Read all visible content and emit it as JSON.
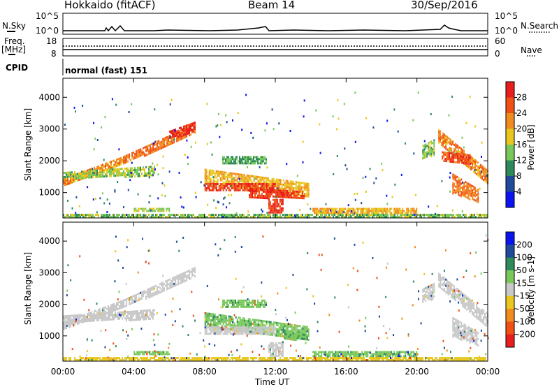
{
  "header": {
    "station": "Hokkaido (fitACF)",
    "beam": "Beam 14",
    "date": "30/Sep/2016"
  },
  "noise_panel": {
    "left_label": "N.Sky",
    "right_label": "N.Search",
    "left_ticks": [
      "10^5",
      "10^0"
    ],
    "right_ticks": [
      "10^5",
      "10^0"
    ]
  },
  "freq_panel": {
    "left_label_1": "Freq.",
    "left_label_2": "[MHz]",
    "right_label": "Nave",
    "left_ticks": [
      "18",
      "8"
    ],
    "right_ticks": [
      "60",
      "0"
    ]
  },
  "cpid": {
    "label": "CPID",
    "value": "normal (fast) 151"
  },
  "x_axis": {
    "label": "Time UT",
    "ticks": [
      "00:00",
      "04:00",
      "08:00",
      "12:00",
      "16:00",
      "20:00",
      "00:00"
    ]
  },
  "colors": {
    "power": [
      "#0a14f0",
      "#1e4a9a",
      "#2e8a5c",
      "#78c85a",
      "#e8c81e",
      "#f08c1e",
      "#f05014",
      "#e81e1e"
    ],
    "velocity": [
      "#0a14f0",
      "#1e4a9a",
      "#2e8a5c",
      "#78c85a",
      "#c8c8c8",
      "#e8c81e",
      "#f08c1e",
      "#f05014",
      "#e81e1e"
    ]
  },
  "chart_data": [
    {
      "type": "heatmap",
      "title": "",
      "xlabel": "Time UT",
      "ylabel": "Slant Range [km]",
      "xlim": [
        0,
        24
      ],
      "ylim": [
        200,
        4600
      ],
      "yticks": [
        1000,
        2000,
        3000,
        4000
      ],
      "colorbar": {
        "label": "Power [dB]",
        "ticks": [
          4,
          8,
          12,
          16,
          20,
          24,
          28
        ],
        "range": [
          0,
          32
        ]
      },
      "regions": [
        {
          "t0": 0.0,
          "t1": 3.4,
          "r0": 1250,
          "r1": 1450,
          "r0b": 1900,
          "r1b": 2150,
          "value": 22
        },
        {
          "t0": 0.0,
          "t1": 5.2,
          "r0": 1450,
          "r1": 1650,
          "r0b": 1550,
          "r1b": 1850,
          "value": 15
        },
        {
          "t0": 3.4,
          "t1": 7.5,
          "r0": 1900,
          "r1": 2150,
          "r0b": 2900,
          "r1b": 3200,
          "value": 24
        },
        {
          "t0": 6.0,
          "t1": 7.5,
          "r0": 2700,
          "r1": 2950,
          "r0b": 2950,
          "r1b": 3250,
          "value": 29
        },
        {
          "t0": 8.0,
          "t1": 13.9,
          "r0": 1300,
          "r1": 1750,
          "r0b": 850,
          "r1b": 1300,
          "value": 20
        },
        {
          "t0": 8.0,
          "t1": 12.0,
          "r0": 1050,
          "r1": 1300,
          "r0b": 1050,
          "r1b": 1300,
          "value": 27
        },
        {
          "t0": 10.5,
          "t1": 13.6,
          "r0": 850,
          "r1": 1150,
          "r0b": 850,
          "r1b": 1050,
          "value": 28
        },
        {
          "t0": 9.0,
          "t1": 11.5,
          "r0": 1950,
          "r1": 2150,
          "r0b": 1950,
          "r1b": 2150,
          "value": 12
        },
        {
          "t0": 11.6,
          "t1": 12.4,
          "r0": 350,
          "r1": 800,
          "r0b": 350,
          "r1b": 800,
          "value": 28
        },
        {
          "t0": 4.0,
          "t1": 6.0,
          "r0": 400,
          "r1": 520,
          "r0b": 400,
          "r1b": 520,
          "value": 16
        },
        {
          "t0": 14.1,
          "t1": 20.0,
          "r0": 380,
          "r1": 520,
          "r0b": 380,
          "r1b": 520,
          "value": 20
        },
        {
          "t0": 0.0,
          "t1": 24.0,
          "r0": 220,
          "r1": 330,
          "r0b": 220,
          "r1b": 330,
          "value": 14
        },
        {
          "t0": 20.3,
          "t1": 21.0,
          "r0": 2100,
          "r1": 2500,
          "r0b": 2200,
          "r1b": 2700,
          "value": 14
        },
        {
          "t0": 21.2,
          "t1": 24.0,
          "r0": 2600,
          "r1": 3000,
          "r0b": 1300,
          "r1b": 1700,
          "value": 23
        },
        {
          "t0": 21.4,
          "t1": 23.0,
          "r0": 2000,
          "r1": 2300,
          "r0b": 1900,
          "r1b": 2200,
          "value": 26
        },
        {
          "t0": 22.0,
          "t1": 23.5,
          "r0": 1000,
          "r1": 1600,
          "r0b": 700,
          "r1b": 1100,
          "value": 24
        }
      ]
    },
    {
      "type": "heatmap",
      "title": "",
      "xlabel": "Time UT",
      "ylabel": "Slant Range [km]",
      "xlim": [
        0,
        24
      ],
      "ylim": [
        200,
        4600
      ],
      "yticks": [
        1000,
        2000,
        3000,
        4000
      ],
      "colorbar": {
        "label": "Velocity [m s-1]",
        "ticks": [
          200,
          100,
          50,
          15,
          -15,
          -50,
          -100,
          -200
        ],
        "range": [
          -250,
          250
        ]
      },
      "regions": [
        {
          "t0": 0.0,
          "t1": 3.4,
          "r0": 1250,
          "r1": 1450,
          "r0b": 1900,
          "r1b": 2150,
          "value": 0
        },
        {
          "t0": 0.0,
          "t1": 5.2,
          "r0": 1450,
          "r1": 1650,
          "r0b": 1550,
          "r1b": 1850,
          "value": 0
        },
        {
          "t0": 3.4,
          "t1": 7.5,
          "r0": 1900,
          "r1": 2150,
          "r0b": 2900,
          "r1b": 3200,
          "value": 0
        },
        {
          "t0": 8.0,
          "t1": 13.9,
          "r0": 1300,
          "r1": 1750,
          "r0b": 850,
          "r1b": 1300,
          "value": 40
        },
        {
          "t0": 8.0,
          "t1": 12.0,
          "r0": 1050,
          "r1": 1300,
          "r0b": 1050,
          "r1b": 1300,
          "value": 0
        },
        {
          "t0": 12.5,
          "t1": 13.8,
          "r0": 900,
          "r1": 1150,
          "r0b": 900,
          "r1b": 1050,
          "value": 45
        },
        {
          "t0": 9.0,
          "t1": 11.5,
          "r0": 1950,
          "r1": 2150,
          "r0b": 1950,
          "r1b": 2150,
          "value": 40
        },
        {
          "t0": 11.6,
          "t1": 12.4,
          "r0": 350,
          "r1": 800,
          "r0b": 350,
          "r1b": 800,
          "value": 0
        },
        {
          "t0": 4.0,
          "t1": 6.0,
          "r0": 400,
          "r1": 520,
          "r0b": 400,
          "r1b": 520,
          "value": 40
        },
        {
          "t0": 14.1,
          "t1": 20.0,
          "r0": 380,
          "r1": 520,
          "r0b": 380,
          "r1b": 520,
          "value": 40
        },
        {
          "t0": 0.0,
          "t1": 24.0,
          "r0": 220,
          "r1": 330,
          "r0b": 220,
          "r1b": 330,
          "value": -30
        },
        {
          "t0": 20.3,
          "t1": 21.0,
          "r0": 2100,
          "r1": 2500,
          "r0b": 2200,
          "r1b": 2700,
          "value": 0
        },
        {
          "t0": 21.2,
          "t1": 24.0,
          "r0": 2600,
          "r1": 3000,
          "r0b": 1300,
          "r1b": 1700,
          "value": 0
        },
        {
          "t0": 22.0,
          "t1": 23.5,
          "r0": 1000,
          "r1": 1600,
          "r0b": 700,
          "r1b": 1100,
          "value": 0
        }
      ]
    }
  ]
}
